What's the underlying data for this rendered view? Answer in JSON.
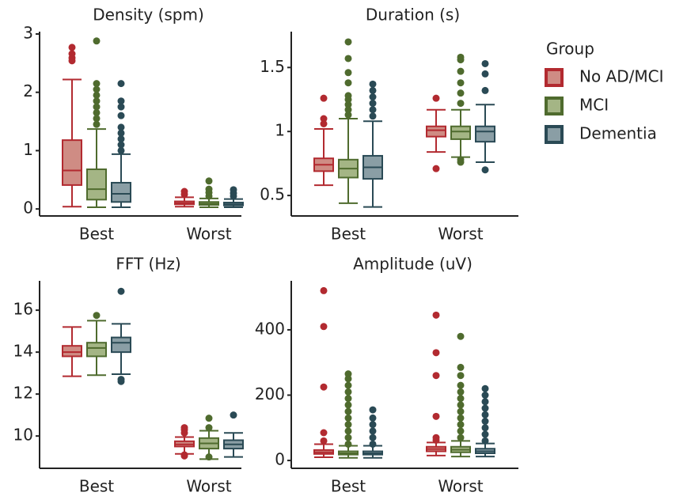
{
  "chart_data": [
    {
      "type": "box",
      "title": "Density (spm)",
      "categories": [
        "Best",
        "Worst"
      ],
      "ylim": [
        -0.12,
        3.04
      ],
      "yticks": [
        0,
        1,
        2,
        3
      ],
      "legend_title": "Group",
      "series": [
        {
          "name": "No AD/MCI",
          "color": "#b22a30",
          "fill": "#cf8c84",
          "boxes": [
            {
              "min": 0.04,
              "q1": 0.41,
              "median": 0.66,
              "q3": 1.18,
              "max": 2.22,
              "outliers": [
                2.54,
                2.59,
                2.66,
                2.77
              ]
            },
            {
              "min": 0.04,
              "q1": 0.08,
              "median": 0.1,
              "q3": 0.13,
              "max": 0.2,
              "outliers": [
                0.25,
                0.3
              ]
            }
          ]
        },
        {
          "name": "MCI",
          "color": "#4f6b2e",
          "fill": "#a4b585",
          "boxes": [
            {
              "min": 0.03,
              "q1": 0.16,
              "median": 0.34,
              "q3": 0.68,
              "max": 1.37,
              "outliers": [
                1.45,
                1.55,
                1.65,
                1.75,
                1.85,
                1.95,
                2.05,
                2.15,
                2.88
              ]
            },
            {
              "min": 0.03,
              "q1": 0.07,
              "median": 0.09,
              "q3": 0.12,
              "max": 0.18,
              "outliers": [
                0.22,
                0.28,
                0.34,
                0.48
              ]
            }
          ]
        },
        {
          "name": "Dementia",
          "color": "#2a4a55",
          "fill": "#8a9ea5",
          "boxes": [
            {
              "min": 0.03,
              "q1": 0.12,
              "median": 0.26,
              "q3": 0.45,
              "max": 0.94,
              "outliers": [
                1.0,
                1.1,
                1.2,
                1.3,
                1.4,
                1.6,
                1.75,
                1.85,
                2.15
              ]
            },
            {
              "min": 0.03,
              "q1": 0.06,
              "median": 0.08,
              "q3": 0.11,
              "max": 0.17,
              "outliers": [
                0.22,
                0.27,
                0.33
              ]
            }
          ]
        }
      ]
    },
    {
      "type": "box",
      "title": "Duration (s)",
      "categories": [
        "Best",
        "Worst"
      ],
      "ylim": [
        0.34,
        1.78
      ],
      "yticks": [
        0.5,
        1,
        1.5
      ],
      "series": [
        {
          "name": "No AD/MCI",
          "color": "#b22a30",
          "fill": "#cf8c84",
          "boxes": [
            {
              "min": 0.58,
              "q1": 0.69,
              "median": 0.74,
              "q3": 0.79,
              "max": 1.02,
              "outliers": [
                1.06,
                1.1,
                1.26
              ]
            },
            {
              "min": 0.84,
              "q1": 0.96,
              "median": 1.01,
              "q3": 1.04,
              "max": 1.17,
              "outliers": [
                0.71,
                1.26
              ]
            }
          ]
        },
        {
          "name": "MCI",
          "color": "#4f6b2e",
          "fill": "#a4b585",
          "boxes": [
            {
              "min": 0.44,
              "q1": 0.64,
              "median": 0.71,
              "q3": 0.78,
              "max": 1.1,
              "outliers": [
                1.13,
                1.17,
                1.21,
                1.25,
                1.28,
                1.38,
                1.46,
                1.57,
                1.7
              ]
            },
            {
              "min": 0.8,
              "q1": 0.94,
              "median": 1.0,
              "q3": 1.04,
              "max": 1.17,
              "outliers": [
                0.76,
                0.78,
                1.22,
                1.3,
                1.38,
                1.47,
                1.56,
                1.58
              ]
            }
          ]
        },
        {
          "name": "Dementia",
          "color": "#2a4a55",
          "fill": "#8a9ea5",
          "boxes": [
            {
              "min": 0.41,
              "q1": 0.63,
              "median": 0.72,
              "q3": 0.81,
              "max": 1.08,
              "outliers": [
                1.12,
                1.17,
                1.22,
                1.27,
                1.32,
                1.37
              ]
            },
            {
              "min": 0.76,
              "q1": 0.92,
              "median": 1.0,
              "q3": 1.04,
              "max": 1.21,
              "outliers": [
                0.7,
                1.32,
                1.45,
                1.53
              ]
            }
          ]
        }
      ]
    },
    {
      "type": "box",
      "title": "FFT (Hz)",
      "categories": [
        "Best",
        "Worst"
      ],
      "ylim": [
        8.46,
        17.4
      ],
      "yticks": [
        10,
        12,
        14,
        16
      ],
      "series": [
        {
          "name": "No AD/MCI",
          "color": "#b22a30",
          "fill": "#cf8c84",
          "boxes": [
            {
              "min": 12.85,
              "q1": 13.8,
              "median": 14,
              "q3": 14.3,
              "max": 15.2,
              "outliers": []
            },
            {
              "min": 9.15,
              "q1": 9.5,
              "median": 9.6,
              "q3": 9.75,
              "max": 9.95,
              "outliers": [
                9.05,
                9.1,
                10.15,
                10.3,
                10.4
              ]
            }
          ]
        },
        {
          "name": "MCI",
          "color": "#4f6b2e",
          "fill": "#a4b585",
          "boxes": [
            {
              "min": 12.9,
              "q1": 13.8,
              "median": 14.2,
              "q3": 14.45,
              "max": 15.5,
              "outliers": [
                15.75
              ]
            },
            {
              "min": 8.9,
              "q1": 9.4,
              "median": 9.65,
              "q3": 9.9,
              "max": 10.25,
              "outliers": [
                9.0,
                10.4,
                10.85
              ]
            }
          ]
        },
        {
          "name": "Dementia",
          "color": "#2a4a55",
          "fill": "#8a9ea5",
          "boxes": [
            {
              "min": 12.95,
              "q1": 14,
              "median": 14.45,
              "q3": 14.7,
              "max": 15.35,
              "outliers": [
                12.6,
                12.7,
                16.9
              ]
            },
            {
              "min": 9.0,
              "q1": 9.4,
              "median": 9.6,
              "q3": 9.8,
              "max": 10.15,
              "outliers": [
                11.0
              ]
            }
          ]
        }
      ]
    },
    {
      "type": "box",
      "title": "Amplitude (uV)",
      "categories": [
        "Best",
        "Worst"
      ],
      "ylim": [
        -24,
        550
      ],
      "yticks": [
        0,
        200,
        400
      ],
      "series": [
        {
          "name": "No AD/MCI",
          "color": "#b22a30",
          "fill": "#cf8c84",
          "boxes": [
            {
              "min": 10,
              "q1": 20,
              "median": 25,
              "q3": 32,
              "max": 50,
              "outliers": [
                60,
                85,
                225,
                410,
                520
              ]
            },
            {
              "min": 15,
              "q1": 28,
              "median": 35,
              "q3": 42,
              "max": 55,
              "outliers": [
                62,
                70,
                135,
                260,
                330,
                445
              ]
            }
          ]
        },
        {
          "name": "MCI",
          "color": "#4f6b2e",
          "fill": "#a4b585",
          "boxes": [
            {
              "min": 8,
              "q1": 18,
              "median": 22,
              "q3": 28,
              "max": 45,
              "outliers": [
                50,
                70,
                90,
                110,
                130,
                150,
                170,
                190,
                210,
                230,
                250,
                265
              ]
            },
            {
              "min": 12,
              "q1": 25,
              "median": 33,
              "q3": 42,
              "max": 60,
              "outliers": [
                70,
                90,
                110,
                130,
                150,
                170,
                190,
                210,
                230,
                260,
                285,
                380
              ]
            }
          ]
        },
        {
          "name": "Dementia",
          "color": "#2a4a55",
          "fill": "#8a9ea5",
          "boxes": [
            {
              "min": 8,
              "q1": 18,
              "median": 22,
              "q3": 28,
              "max": 45,
              "outliers": [
                50,
                70,
                90,
                110,
                130,
                155
              ]
            },
            {
              "min": 12,
              "q1": 22,
              "median": 28,
              "q3": 36,
              "max": 52,
              "outliers": [
                60,
                80,
                100,
                120,
                140,
                160,
                180,
                200,
                220
              ]
            }
          ]
        }
      ]
    }
  ]
}
